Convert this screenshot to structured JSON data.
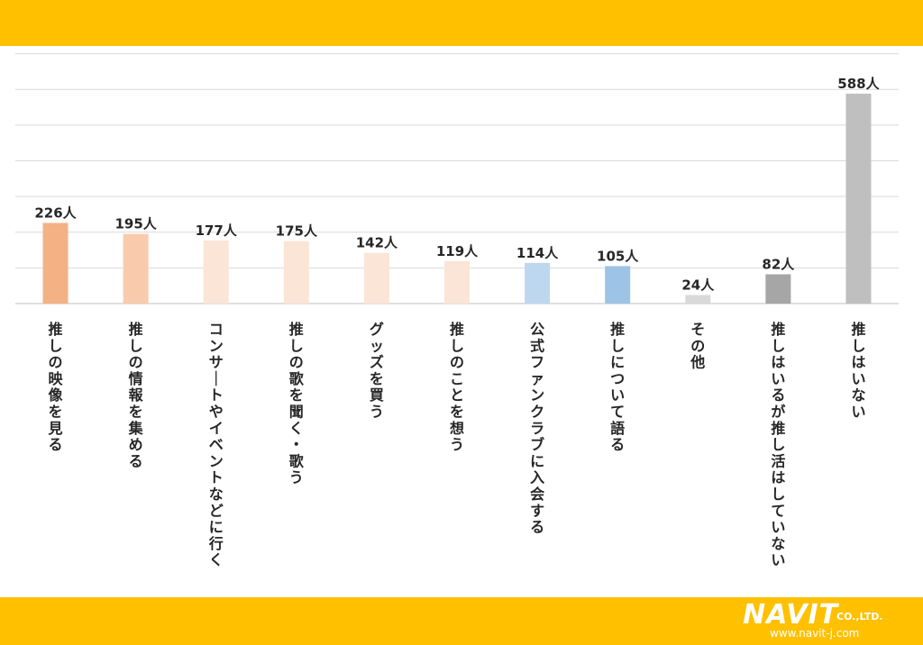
{
  "chart_data": {
    "type": "bar",
    "categories": [
      "推しの映像を見る",
      "推しの情報を集める",
      "コンサートやイベントなどに行く",
      "推しの歌を聞く・歌う",
      "グッズを買う",
      "推しのことを想う",
      "公式ファンクラブに入会する",
      "推しについて語る",
      "その他",
      "推しはいるが推し活はしていない",
      "推しはいない"
    ],
    "values": [
      226,
      195,
      177,
      175,
      142,
      119,
      114,
      105,
      24,
      82,
      588
    ],
    "value_labels": [
      "226人",
      "195人",
      "177人",
      "175人",
      "142人",
      "119人",
      "114人",
      "105人",
      "24人",
      "82人",
      "588人"
    ],
    "colors": [
      "#f4b183",
      "#f8cbad",
      "#fbe5d6",
      "#fbe5d6",
      "#fbe5d6",
      "#fbe5d6",
      "#bdd7ee",
      "#9dc3e6",
      "#d9d9d9",
      "#a6a6a6",
      "#bfbfbf"
    ],
    "ylim": [
      0,
      700
    ],
    "grid": true,
    "title": "",
    "xlabel": "",
    "ylabel": ""
  },
  "logo": {
    "name": "NAVIT",
    "suffix": "CO.,LTD.",
    "url": "www.navit-j.com"
  },
  "theme": {
    "band_color": "#ffc000",
    "gridline_color": "#d9d9d9",
    "text_color": "#262626"
  }
}
